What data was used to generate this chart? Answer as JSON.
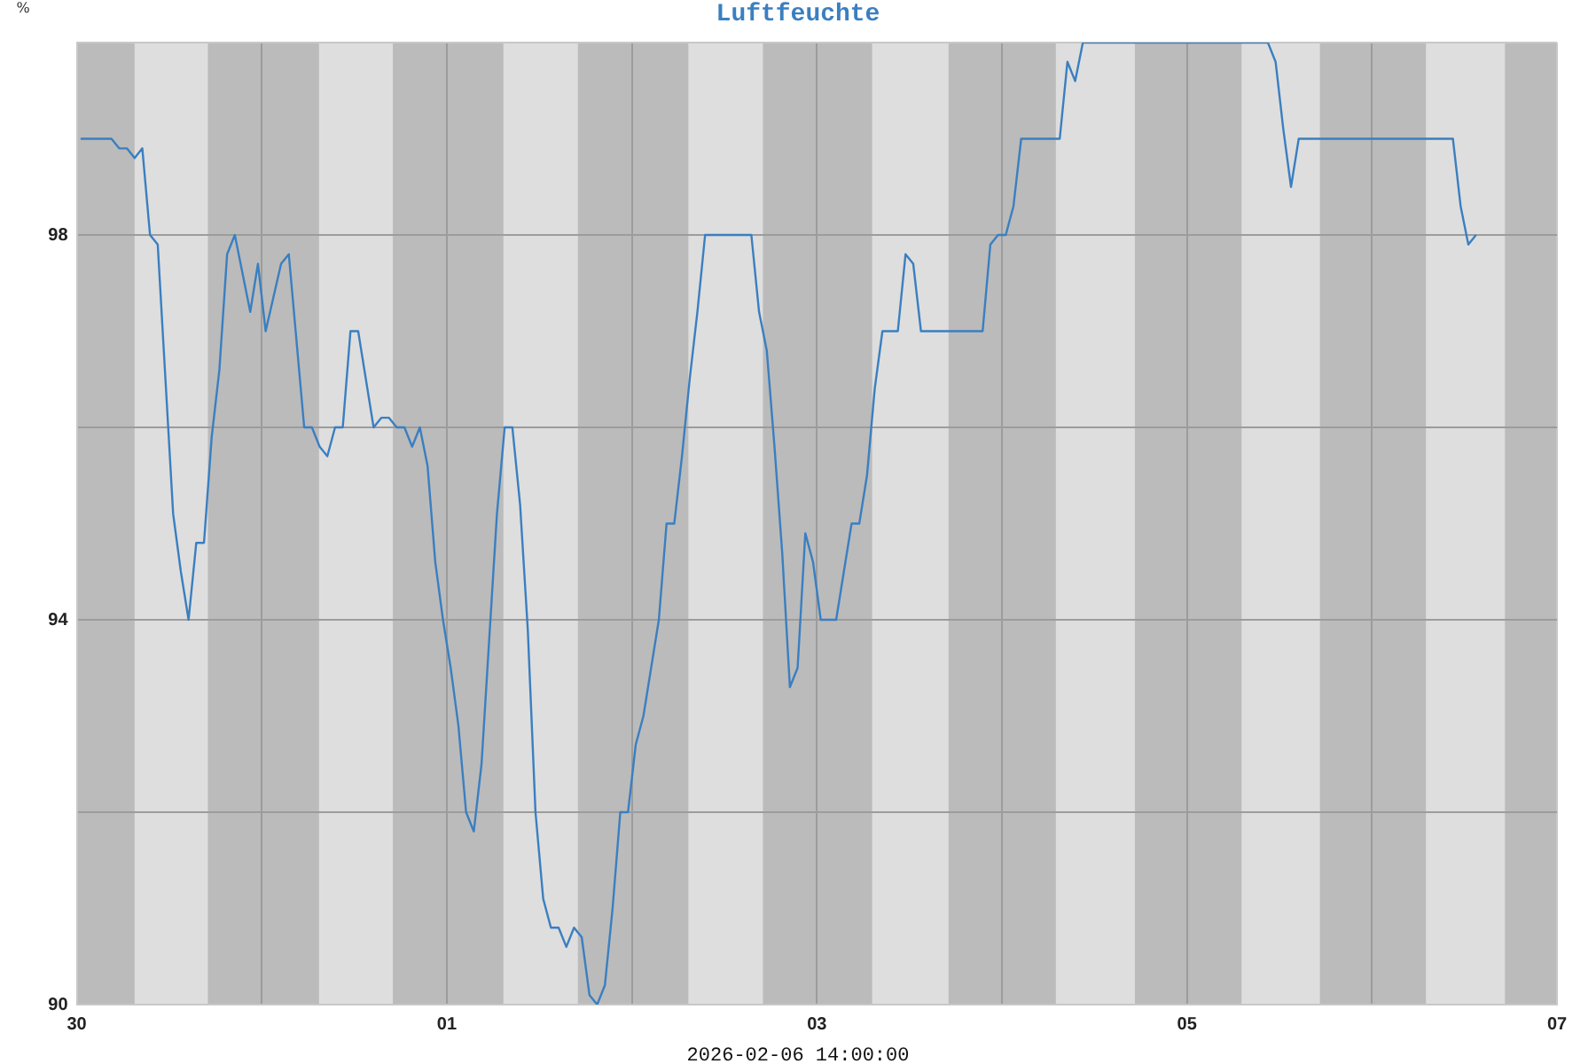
{
  "chart_data": {
    "type": "line",
    "title": "Luftfeuchte",
    "ylabel": "%",
    "annotations": [
      "2026-02-06 14:00:00"
    ],
    "x": [
      "2026-01-30T00:30",
      "2026-01-30T04:30",
      "2026-01-30T05:30",
      "2026-01-30T06:30",
      "2026-01-30T07:30",
      "2026-01-30T08:30",
      "2026-01-30T09:30",
      "2026-01-30T10:30",
      "2026-01-30T11:30",
      "2026-01-30T12:30",
      "2026-01-30T13:30",
      "2026-01-30T14:30",
      "2026-01-30T15:30",
      "2026-01-30T16:30",
      "2026-01-30T17:30",
      "2026-01-30T18:30",
      "2026-01-30T19:30",
      "2026-01-30T20:30",
      "2026-01-30T22:30",
      "2026-01-30T23:30",
      "2026-01-31T00:30",
      "2026-01-31T02:30",
      "2026-01-31T03:30",
      "2026-01-31T05:30",
      "2026-01-31T06:30",
      "2026-01-31T07:30",
      "2026-01-31T08:30",
      "2026-01-31T09:30",
      "2026-01-31T10:30",
      "2026-01-31T11:30",
      "2026-01-31T12:30",
      "2026-01-31T14:30",
      "2026-01-31T15:30",
      "2026-01-31T16:30",
      "2026-01-31T17:30",
      "2026-01-31T18:30",
      "2026-01-31T19:30",
      "2026-01-31T20:30",
      "2026-01-31T21:30",
      "2026-01-31T22:30",
      "2026-01-31T23:30",
      "2026-02-01T00:30",
      "2026-02-01T01:30",
      "2026-02-01T02:30",
      "2026-02-01T03:30",
      "2026-02-01T04:30",
      "2026-02-01T05:30",
      "2026-02-01T06:30",
      "2026-02-01T07:30",
      "2026-02-01T08:30",
      "2026-02-01T09:30",
      "2026-02-01T10:30",
      "2026-02-01T11:30",
      "2026-02-01T12:30",
      "2026-02-01T13:30",
      "2026-02-01T14:30",
      "2026-02-01T15:30",
      "2026-02-01T16:30",
      "2026-02-01T17:30",
      "2026-02-01T18:30",
      "2026-02-01T19:30",
      "2026-02-01T20:30",
      "2026-02-01T21:30",
      "2026-02-01T22:30",
      "2026-02-01T23:30",
      "2026-02-02T00:30",
      "2026-02-02T01:30",
      "2026-02-02T02:30",
      "2026-02-02T03:30",
      "2026-02-02T04:30",
      "2026-02-02T05:30",
      "2026-02-02T06:30",
      "2026-02-02T07:30",
      "2026-02-02T08:30",
      "2026-02-02T09:30",
      "2026-02-02T15:30",
      "2026-02-02T16:30",
      "2026-02-02T17:30",
      "2026-02-02T18:30",
      "2026-02-02T19:30",
      "2026-02-02T20:30",
      "2026-02-02T21:30",
      "2026-02-02T22:30",
      "2026-02-02T23:30",
      "2026-02-03T00:30",
      "2026-02-03T02:30",
      "2026-02-03T03:30",
      "2026-02-03T04:30",
      "2026-02-03T05:30",
      "2026-02-03T06:30",
      "2026-02-03T07:30",
      "2026-02-03T08:30",
      "2026-02-03T10:30",
      "2026-02-03T11:30",
      "2026-02-03T12:30",
      "2026-02-03T13:30",
      "2026-02-03T21:30",
      "2026-02-03T22:30",
      "2026-02-03T23:30",
      "2026-02-04T00:30",
      "2026-02-04T01:30",
      "2026-02-04T02:30",
      "2026-02-04T07:30",
      "2026-02-04T08:30",
      "2026-02-04T09:30",
      "2026-02-04T10:30",
      "2026-02-05T10:30",
      "2026-02-05T11:30",
      "2026-02-05T12:30",
      "2026-02-05T13:30",
      "2026-02-05T14:30",
      "2026-02-06T10:30",
      "2026-02-06T11:30",
      "2026-02-06T12:30",
      "2026-02-06T13:30"
    ],
    "values": [
      99.0,
      99.0,
      98.9,
      98.9,
      98.8,
      98.9,
      98.0,
      97.9,
      96.5,
      95.1,
      94.5,
      94.0,
      94.8,
      94.8,
      95.9,
      96.6,
      97.8,
      98.0,
      97.2,
      97.7,
      97.0,
      97.7,
      97.8,
      96.0,
      96.0,
      95.8,
      95.7,
      96.0,
      96.0,
      97.0,
      97.0,
      96.0,
      96.1,
      96.1,
      96.0,
      96.0,
      95.8,
      96.0,
      95.6,
      94.6,
      94.0,
      93.5,
      92.9,
      92.0,
      91.8,
      92.5,
      93.8,
      95.1,
      96.0,
      96.0,
      95.2,
      93.9,
      92.0,
      91.1,
      90.8,
      90.8,
      90.6,
      90.8,
      90.7,
      90.1,
      90.0,
      90.2,
      91.0,
      92.0,
      92.0,
      92.7,
      93.0,
      93.5,
      94.0,
      95.0,
      95.0,
      95.7,
      96.5,
      97.2,
      98.0,
      98.0,
      97.2,
      96.8,
      95.8,
      94.7,
      93.3,
      93.5,
      94.9,
      94.6,
      94.0,
      94.0,
      94.5,
      95.0,
      95.0,
      95.5,
      96.4,
      97.0,
      97.0,
      97.8,
      97.7,
      97.0,
      97.0,
      97.9,
      98.0,
      98.0,
      98.3,
      99.0,
      99.0,
      99.8,
      99.6,
      100.0,
      100.0,
      99.8,
      99.1,
      98.5,
      99.0,
      99.0,
      98.3,
      97.9,
      98.0
    ],
    "color": "#3a7fc0",
    "xlim": [
      "2026-01-30",
      "2026-02-07"
    ],
    "xticks": [
      {
        "value": "2026-01-30",
        "label": "30"
      },
      {
        "value": "2026-01-31",
        "label": null
      },
      {
        "value": "2026-02-01",
        "label": "01"
      },
      {
        "value": "2026-02-02",
        "label": null
      },
      {
        "value": "2026-02-03",
        "label": "03"
      },
      {
        "value": "2026-02-04",
        "label": null
      },
      {
        "value": "2026-02-05",
        "label": "05"
      },
      {
        "value": "2026-02-06",
        "label": null
      },
      {
        "value": "2026-02-07",
        "label": "07"
      }
    ],
    "ylim": [
      90,
      100
    ],
    "yticks": [
      90,
      {
        "value": 92,
        "label": null
      },
      94,
      {
        "value": 96,
        "label": null
      },
      98,
      {
        "value": 100,
        "label": null
      }
    ],
    "bands": [
      {
        "axis": "x",
        "from": "2026-01-30T07:30",
        "to": "2026-01-30T17:00",
        "color": "#dedede"
      },
      {
        "axis": "x",
        "from": "2026-01-31T07:25",
        "to": "2026-01-31T17:00",
        "color": "#dedede"
      },
      {
        "axis": "x",
        "from": "2026-02-01T07:20",
        "to": "2026-02-01T17:00",
        "color": "#dedede"
      },
      {
        "axis": "x",
        "from": "2026-02-02T07:20",
        "to": "2026-02-02T17:00",
        "color": "#dedede"
      },
      {
        "axis": "x",
        "from": "2026-02-03T07:10",
        "to": "2026-02-03T17:05",
        "color": "#dedede"
      },
      {
        "axis": "x",
        "from": "2026-02-04T07:00",
        "to": "2026-02-04T17:15",
        "color": "#dedede"
      },
      {
        "axis": "x",
        "from": "2026-02-05T07:05",
        "to": "2026-02-05T17:15",
        "color": "#dedede"
      },
      {
        "axis": "x",
        "from": "2026-02-06T07:00",
        "to": "2026-02-06T17:15",
        "color": "#dedede"
      }
    ],
    "grid": true
  }
}
